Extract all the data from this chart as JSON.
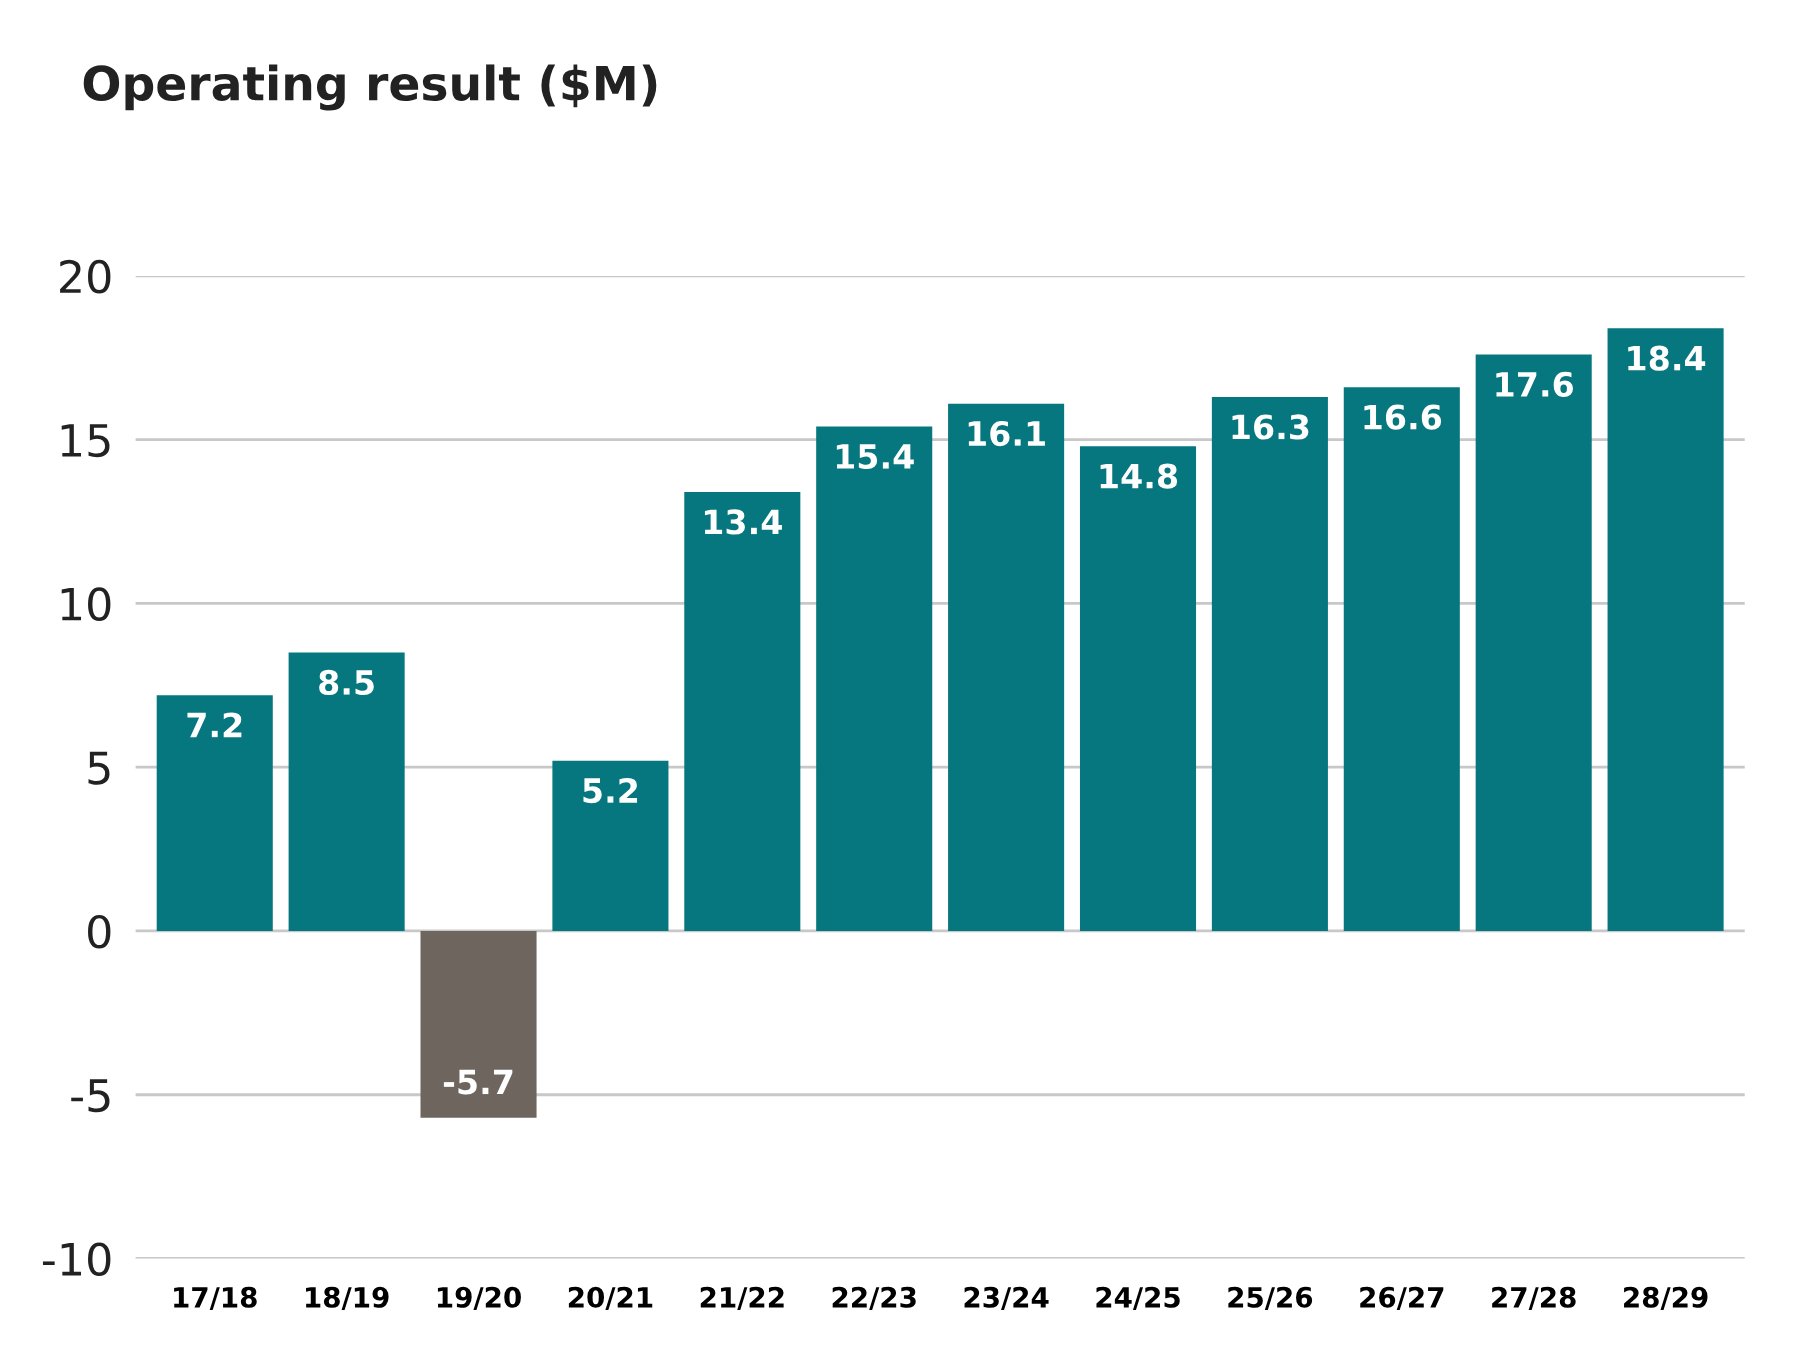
{
  "chart_data": {
    "type": "bar",
    "title": "Operating result ($M)",
    "categories": [
      "17/18",
      "18/19",
      "19/20",
      "20/21",
      "21/22",
      "22/23",
      "23/24",
      "24/25",
      "25/26",
      "26/27",
      "27/28",
      "28/29"
    ],
    "values": [
      7.2,
      8.5,
      -5.7,
      5.2,
      13.4,
      15.4,
      16.1,
      14.8,
      16.3,
      16.6,
      17.6,
      18.4
    ],
    "colors": [
      "#06777e",
      "#06777e",
      "#6e665e",
      "#06777e",
      "#06777e",
      "#06777e",
      "#06777e",
      "#06777e",
      "#06777e",
      "#06777e",
      "#06777e",
      "#06777e"
    ],
    "ylim": [
      -10,
      20
    ],
    "yticks": [
      -10,
      -5,
      0,
      5,
      10,
      15,
      20
    ],
    "grid": "y",
    "data_labels": true
  }
}
